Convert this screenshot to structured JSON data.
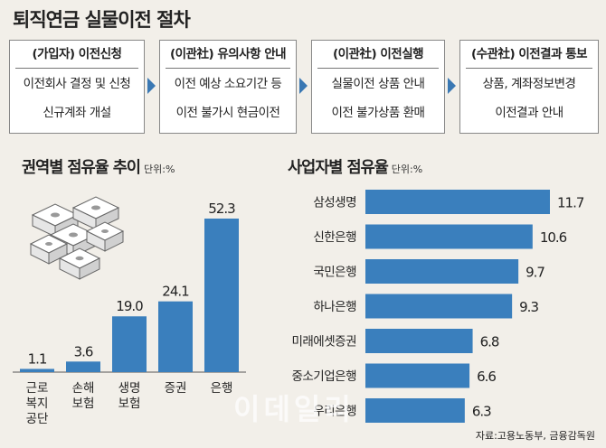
{
  "title": "퇴직연금 실물이전 절차",
  "steps": [
    {
      "head": "(가입자) 이전신청",
      "lines": [
        "이전회사 결정 및 신청",
        "신규계좌 개설"
      ]
    },
    {
      "head": "(이관社) 유의사항 안내",
      "lines": [
        "이전 예상 소요기간 등",
        "이전 불가시 현금이전"
      ]
    },
    {
      "head": "(이관社) 이전실행",
      "lines": [
        "실물이전 상품 안내",
        "이전 불가상품 환매"
      ]
    },
    {
      "head": "(수관社) 이전결과 통보",
      "lines": [
        "상품, 계좌정보변경",
        "이전결과 안내"
      ]
    }
  ],
  "colors": {
    "bar": "#3a7fbd",
    "arrow": "#3a78b3",
    "background": "#f2efe9"
  },
  "illustration": "stacked-money-bundles-icon",
  "left_chart_title": "권역별 점유율 추이",
  "left_chart_unit": "단위:%",
  "right_chart_title": "사업자별 점유율",
  "right_chart_unit": "단위:%",
  "source": "자료:고용노동부, 금융감독원",
  "watermark": "이데일리",
  "chart_data": [
    {
      "type": "bar",
      "title": "권역별 점유율 추이",
      "unit": "단위:%",
      "categories": [
        [
          "근로",
          "복지",
          "공단"
        ],
        [
          "손해",
          "보험"
        ],
        [
          "생명",
          "보험"
        ],
        [
          "증권"
        ],
        [
          "은행"
        ]
      ],
      "values": [
        1.1,
        3.6,
        19.0,
        24.1,
        52.3
      ],
      "value_labels": [
        "1.1",
        "3.6",
        "19.0",
        "24.1",
        "52.3"
      ],
      "ylim": [
        0,
        52.3
      ],
      "grid": false
    },
    {
      "type": "bar",
      "orientation": "horizontal",
      "title": "사업자별 점유율",
      "unit": "단위:%",
      "categories": [
        "삼성생명",
        "신한은행",
        "국민은행",
        "하나은행",
        "미래에셋증권",
        "중소기업은행",
        "우리은행"
      ],
      "values": [
        11.7,
        10.6,
        9.7,
        9.3,
        6.8,
        6.6,
        6.3
      ],
      "value_labels": [
        "11.7",
        "10.6",
        "9.7",
        "9.3",
        "6.8",
        "6.6",
        "6.3"
      ],
      "xlim": [
        0,
        11.7
      ],
      "grid": false
    }
  ]
}
